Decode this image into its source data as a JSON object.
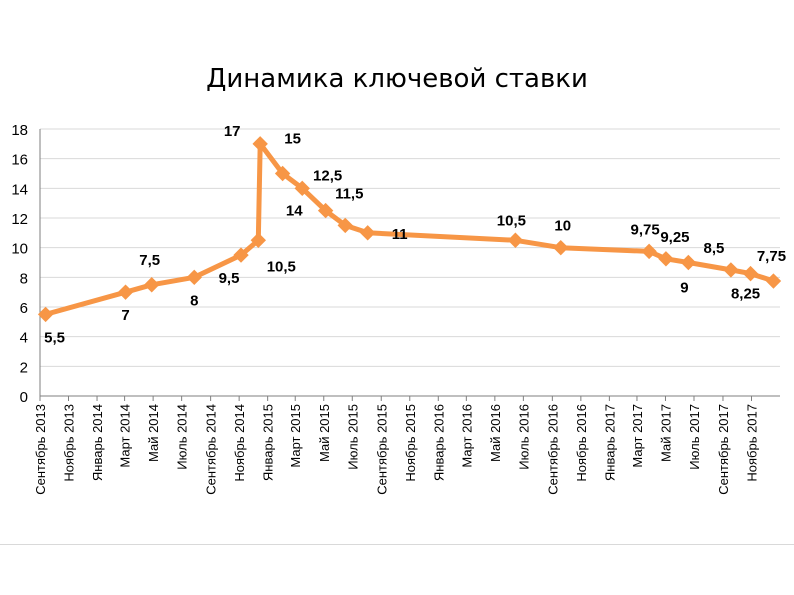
{
  "chart_data": {
    "type": "line",
    "title": "Динамика ключевой ставки",
    "xlabel": "",
    "ylabel": "",
    "ylim": [
      0,
      18
    ],
    "y_ticks": [
      0,
      2,
      4,
      6,
      8,
      10,
      12,
      14,
      16,
      18
    ],
    "grid": true,
    "legend": "none",
    "colors": {
      "line": "#F79646",
      "grid": "#d9d9d9",
      "axis": "#7f7f7f"
    },
    "x_tick_labels": [
      "Сентябрь 2013",
      "Ноябрь 2013",
      "Январь 2014",
      "Март 2014",
      "Май 2014",
      "Июль 2014",
      "Сентябрь 2014",
      "Ноябрь 2014",
      "Январь 2015",
      "Март 2015",
      "Май 2015",
      "Июль 2015",
      "Сентябрь 2015",
      "Ноябрь 2015",
      "Январь 2016",
      "Март 2016",
      "Май 2016",
      "Июль 2016",
      "Сентябрь 2016",
      "Ноябрь 2016",
      "Январь 2017",
      "Март 2017",
      "Май 2017",
      "Июль 2017",
      "Сентябрь 2017",
      "Ноябрь 2017"
    ],
    "series": [
      {
        "points": [
          {
            "x": "2013-09-13",
            "y": 5.5,
            "label": "5,5"
          },
          {
            "x": "2014-03-03",
            "y": 7,
            "label": "7"
          },
          {
            "x": "2014-04-28",
            "y": 7.5,
            "label": "7,5"
          },
          {
            "x": "2014-07-28",
            "y": 8,
            "label": "8"
          },
          {
            "x": "2014-11-05",
            "y": 9.5,
            "label": "9,5"
          },
          {
            "x": "2014-12-12",
            "y": 10.5,
            "label": "10,5"
          },
          {
            "x": "2014-12-16",
            "y": 17,
            "label": "17"
          },
          {
            "x": "2015-02-02",
            "y": 15,
            "label": "15"
          },
          {
            "x": "2015-03-16",
            "y": 14,
            "label": "14"
          },
          {
            "x": "2015-05-05",
            "y": 12.5,
            "label": "12,5"
          },
          {
            "x": "2015-06-16",
            "y": 11.5,
            "label": "11,5"
          },
          {
            "x": "2015-08-03",
            "y": 11,
            "label": "11"
          },
          {
            "x": "2016-06-14",
            "y": 10.5,
            "label": "10,5"
          },
          {
            "x": "2016-09-19",
            "y": 10,
            "label": "10"
          },
          {
            "x": "2017-03-27",
            "y": 9.75,
            "label": "9,75"
          },
          {
            "x": "2017-05-02",
            "y": 9.25,
            "label": "9,25"
          },
          {
            "x": "2017-06-19",
            "y": 9,
            "label": "9"
          },
          {
            "x": "2017-09-18",
            "y": 8.5,
            "label": "8,5"
          },
          {
            "x": "2017-10-30",
            "y": 8.25,
            "label": "8,25"
          },
          {
            "x": "2017-12-18",
            "y": 7.75,
            "label": "7,75"
          }
        ]
      }
    ]
  }
}
